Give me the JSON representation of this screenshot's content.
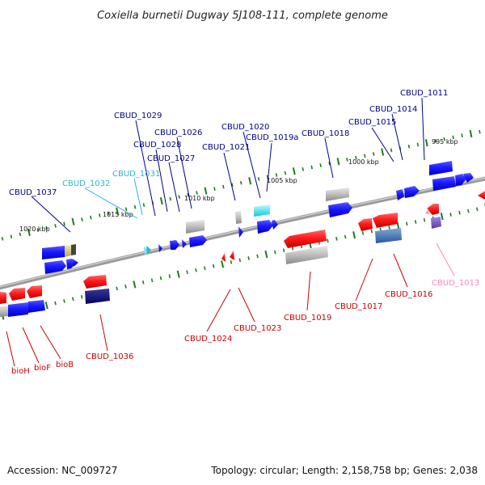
{
  "header": {
    "title": "Coxiella burnetii Dugway 5J108-111, complete genome"
  },
  "footer": {
    "accession": "Accession: NC_009727",
    "summary": "Topology: circular; Length: 2,158,758 bp; Genes: 2,038"
  },
  "ruler": [
    "995 kbp",
    "1000 kbp",
    "1005 kbp",
    "1010 kbp",
    "1015 kbp",
    "1020 kbp"
  ],
  "genes": [
    {
      "label": "CBUD_1011",
      "color": "#00008b"
    },
    {
      "label": "CBUD_1014",
      "color": "#00008b"
    },
    {
      "label": "CBUD_1015",
      "color": "#00008b"
    },
    {
      "label": "CBUD_1018",
      "color": "#00008b"
    },
    {
      "label": "CBUD_1020",
      "color": "#00008b"
    },
    {
      "label": "CBUD_1019a",
      "color": "#00008b"
    },
    {
      "label": "CBUD_1021",
      "color": "#00008b"
    },
    {
      "label": "CBUD_1026",
      "color": "#00008b"
    },
    {
      "label": "CBUD_1029",
      "color": "#00008b"
    },
    {
      "label": "CBUD_1028",
      "color": "#00008b"
    },
    {
      "label": "CBUD_1027",
      "color": "#00008b"
    },
    {
      "label": "CBUD_1031",
      "color": "#29b6d6"
    },
    {
      "label": "CBUD_1032",
      "color": "#29b6d6"
    },
    {
      "label": "CBUD_1037",
      "color": "#00008b"
    },
    {
      "label": "CBUD_1013",
      "color": "#f08cba"
    },
    {
      "label": "CBUD_1016",
      "color": "#cc0000"
    },
    {
      "label": "CBUD_1017",
      "color": "#cc0000"
    },
    {
      "label": "CBUD_1019",
      "color": "#cc0000"
    },
    {
      "label": "CBUD_1023",
      "color": "#cc0000"
    },
    {
      "label": "CBUD_1024",
      "color": "#cc0000"
    },
    {
      "label": "CBUD_1036",
      "color": "#cc0000"
    },
    {
      "label": "bioB",
      "color": "#cc0000"
    },
    {
      "label": "bioF",
      "color": "#cc0000"
    },
    {
      "label": "bioH",
      "color": "#cc0000"
    }
  ]
}
